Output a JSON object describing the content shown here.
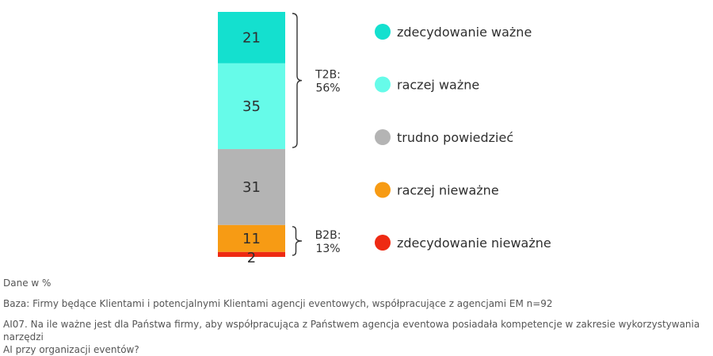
{
  "chart_data": {
    "type": "bar",
    "stacked": true,
    "orientation": "vertical",
    "categories": [
      ""
    ],
    "series": [
      {
        "name": "zdecydowanie ważne",
        "values": [
          21
        ],
        "color": "#14e0cf"
      },
      {
        "name": "raczej ważne",
        "values": [
          35
        ],
        "color": "#66fbe9"
      },
      {
        "name": "trudno powiedzieć",
        "values": [
          31
        ],
        "color": "#b4b4b4"
      },
      {
        "name": "raczej nieważne",
        "values": [
          11
        ],
        "color": "#f79b14"
      },
      {
        "name": "zdecydowanie nieważne",
        "values": [
          2
        ],
        "color": "#ee2a13"
      }
    ],
    "data_labels": [
      "21",
      "35",
      "31",
      "11",
      "2"
    ],
    "brackets": [
      {
        "line1": "T2B:",
        "line2": "56%",
        "from_series": 0,
        "to_series": 1
      },
      {
        "line1": "B2B:",
        "line2": "13%",
        "from_series": 3,
        "to_series": 4
      }
    ],
    "legend_position": "right",
    "ylim": [
      0,
      100
    ]
  },
  "footnotes": {
    "units": "Dane w %",
    "base": "Baza: Firmy będące Klientami i potencjalnymi Klientami agencji eventowych, współpracujące z agencjami EM n=92",
    "question_line1": "AI07. Na ile ważne jest dla Państwa firmy, aby współpracująca z Państwem agencja eventowa posiadała kompetencje w zakresie wykorzystywania narzędzi",
    "question_line2": "AI przy organizacji eventów?"
  }
}
